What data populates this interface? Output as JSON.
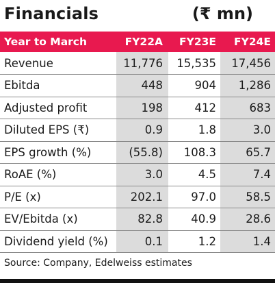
{
  "title": "Financials",
  "unit": "(₹ mn)",
  "columns": [
    "Year to March",
    "FY22A",
    "FY23E",
    "FY24E"
  ],
  "rows": [
    {
      "label": "Revenue",
      "values": [
        "11,776",
        "15,535",
        "17,456"
      ]
    },
    {
      "label": "Ebitda",
      "values": [
        "448",
        "904",
        "1,286"
      ]
    },
    {
      "label": "Adjusted profit",
      "values": [
        "198",
        "412",
        "683"
      ]
    },
    {
      "label": "Diluted EPS (₹)",
      "values": [
        "0.9",
        "1.8",
        "3.0"
      ]
    },
    {
      "label": "EPS growth (%)",
      "values": [
        "(55.8)",
        "108.3",
        "65.7"
      ]
    },
    {
      "label": "RoAE (%)",
      "values": [
        "3.0",
        "4.5",
        "7.4"
      ]
    },
    {
      "label": "P/E (x)",
      "values": [
        "202.1",
        "97.0",
        "58.5"
      ]
    },
    {
      "label": "EV/Ebitda (x)",
      "values": [
        "82.8",
        "40.9",
        "28.6"
      ]
    },
    {
      "label": "Dividend yield (%)",
      "values": [
        "0.1",
        "1.2",
        "1.4"
      ]
    }
  ],
  "source": "Source: Company, Edelweiss estimates",
  "colors": {
    "header_bg": "#e8194f",
    "shaded_cell": "#dcdcdc",
    "text": "#1a1a1a"
  }
}
